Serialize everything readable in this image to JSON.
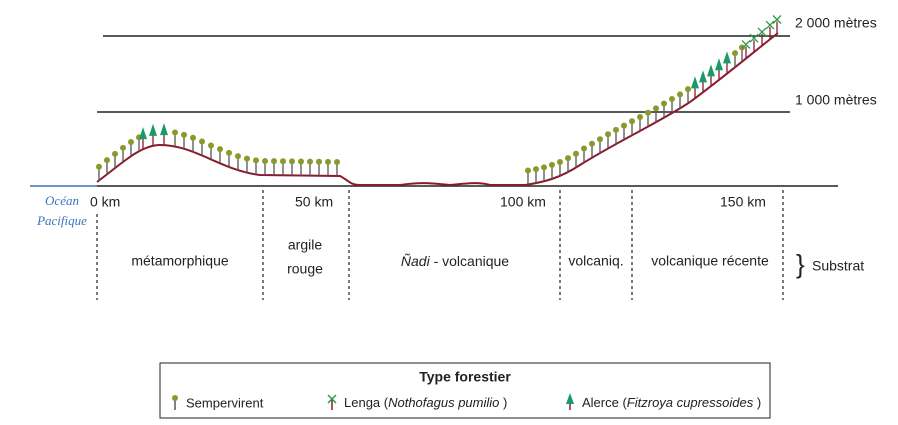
{
  "altitudes": [
    "2 000 mètres",
    "1 000 mètres"
  ],
  "ocean": [
    "Océan",
    "Pacifique"
  ],
  "distances": [
    "0 km",
    "50 km",
    "100 km",
    "150 km"
  ],
  "substrates": {
    "metamorphique": "métamorphique",
    "argile": [
      "argile",
      "rouge"
    ],
    "nadi": [
      "Ñadi",
      " - volcanique"
    ],
    "volcaniq": "volcaniq.",
    "recente": "volcanique récente",
    "label": "Substrat"
  },
  "legend": {
    "title": "Type forestier",
    "items": [
      {
        "name": "Sempervirent"
      },
      {
        "name": "Lenga (",
        "species": "Nothofagus pumilio",
        "close": " )"
      },
      {
        "name": "Alerce (",
        "species": "Fitzroya cupressoides",
        "close": " )"
      }
    ]
  }
}
